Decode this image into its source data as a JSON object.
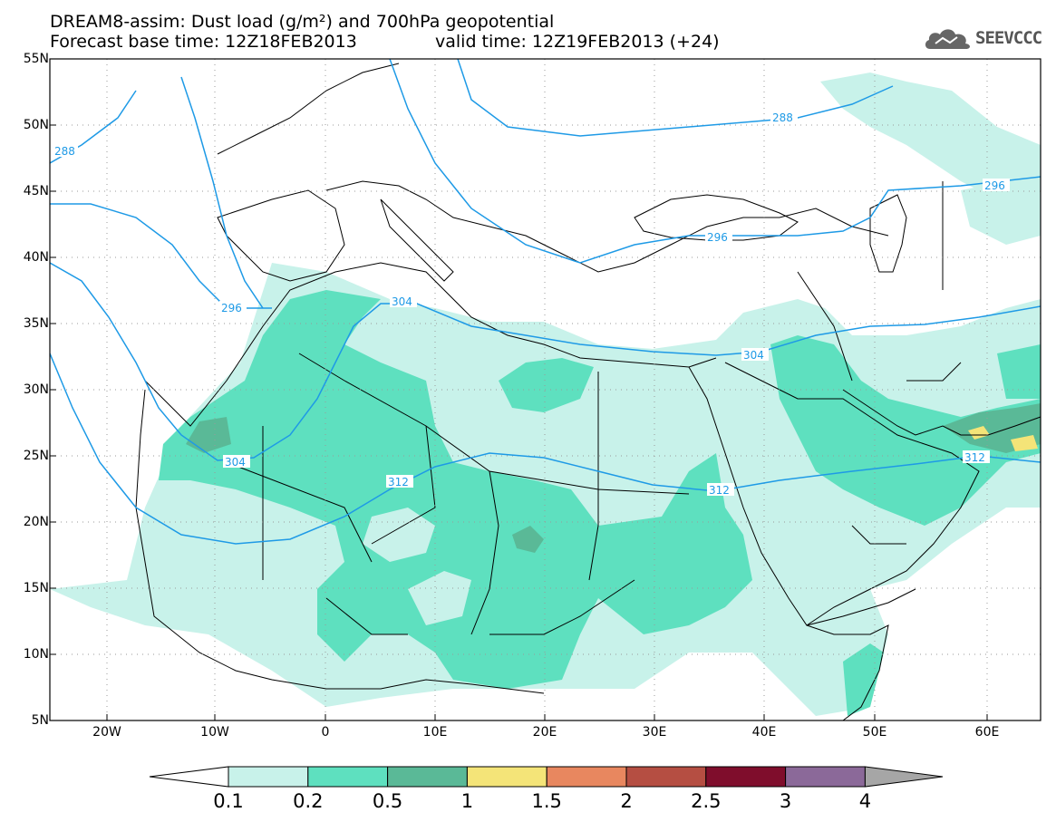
{
  "title": {
    "line1": "DREAM8-assim: Dust load (g/m²) and 700hPa geopotential",
    "line2_base": "Forecast base time: 12Z18FEB2013",
    "line2_valid": "valid time: 12Z19FEB2013 (+24)"
  },
  "logo": {
    "text": "SEEVCCC",
    "icon": "cloud-icon"
  },
  "axes": {
    "y_ticks": [
      "55N",
      "50N",
      "45N",
      "40N",
      "35N",
      "30N",
      "25N",
      "20N",
      "15N",
      "10N",
      "5N"
    ],
    "x_ticks": [
      "20W",
      "10W",
      "0",
      "10E",
      "20E",
      "30E",
      "40E",
      "50E",
      "60E"
    ]
  },
  "contours": [
    {
      "label": "288"
    },
    {
      "label": "288"
    },
    {
      "label": "296"
    },
    {
      "label": "296"
    },
    {
      "label": "296"
    },
    {
      "label": "304"
    },
    {
      "label": "304"
    },
    {
      "label": "304"
    },
    {
      "label": "312"
    },
    {
      "label": "312"
    },
    {
      "label": "312"
    }
  ],
  "colorbar": {
    "labels": [
      "0.1",
      "0.2",
      "0.5",
      "1",
      "1.5",
      "2",
      "2.5",
      "3",
      "4"
    ],
    "colors": [
      "#ffffff",
      "#c8f2ea",
      "#5ee0bf",
      "#5ab997",
      "#f4e478",
      "#e8875f",
      "#b54e42",
      "#7f0d2c",
      "#8b6999",
      "#a6a6a6"
    ]
  },
  "colors": {
    "dust_light": "#c8f2ea",
    "dust_medium": "#5ee0bf",
    "dust_dark": "#5ab997",
    "dust_yellow": "#f4e478",
    "contour": "#1e9ae6"
  }
}
